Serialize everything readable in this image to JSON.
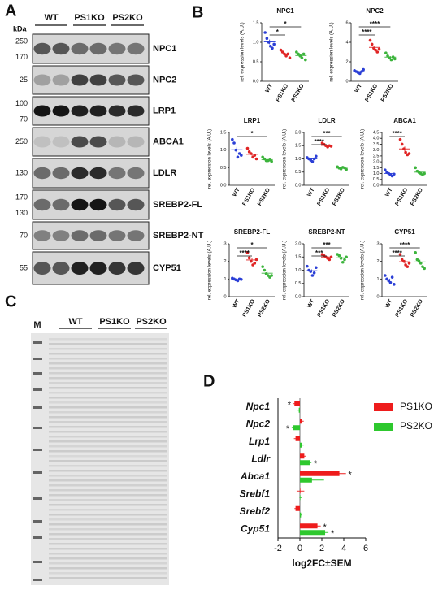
{
  "panel_a": {
    "label": "A",
    "unit": "kDa",
    "groups": [
      "WT",
      "PS1KO",
      "PS2KO"
    ],
    "blots": [
      {
        "name": "NPC1",
        "markers": [
          250,
          170
        ]
      },
      {
        "name": "NPC2",
        "markers": [
          25
        ]
      },
      {
        "name": "LRP1",
        "markers": [
          100,
          70
        ]
      },
      {
        "name": "ABCA1",
        "markers": [
          250
        ]
      },
      {
        "name": "LDLR",
        "markers": [
          130
        ]
      },
      {
        "name": "SREBP2-FL",
        "markers": [
          170,
          130
        ]
      },
      {
        "name": "SREBP2-NT",
        "markers": [
          70
        ]
      },
      {
        "name": "CYP51",
        "markers": [
          55
        ]
      }
    ]
  },
  "panel_b": {
    "label": "B"
  },
  "panel_c": {
    "label": "C",
    "marker_lane": "M",
    "groups": [
      "WT",
      "PS1KO",
      "PS2KO"
    ]
  },
  "panel_d": {
    "label": "D"
  },
  "chart_data": [
    {
      "type": "scatter",
      "title": "NPC1",
      "y_label": "rel. expression levels (A.U.)",
      "categories": [
        "WT",
        "PS1KO",
        "PS2KO"
      ],
      "series": [
        {
          "color": "#2b3fd6",
          "values": [
            1.25,
            1.1,
            1.0,
            0.9,
            0.85,
            0.95
          ],
          "mean": 1.01,
          "sem": 0.06
        },
        {
          "color": "#e02424",
          "values": [
            0.8,
            0.75,
            0.7,
            0.65,
            0.7,
            0.6
          ],
          "mean": 0.7,
          "sem": 0.03
        },
        {
          "color": "#3cb43c",
          "values": [
            0.75,
            0.7,
            0.65,
            0.6,
            0.7,
            0.55
          ],
          "mean": 0.66,
          "sem": 0.03
        }
      ],
      "ylim": [
        0,
        1.5
      ],
      "yticks": [
        {
          "value": 0,
          "label": "0.0"
        },
        0.5,
        {
          "value": 1,
          "label": "1.0"
        },
        1.5
      ],
      "significance": [
        {
          "groups": [
            "WT",
            "PS1KO"
          ],
          "label": "*"
        },
        {
          "groups": [
            "WT",
            "PS2KO"
          ],
          "label": "*"
        }
      ]
    },
    {
      "type": "scatter",
      "title": "NPC2",
      "y_label": "rel. expression levels (A.U.)",
      "categories": [
        "WT",
        "PS1KO",
        "PS2KO"
      ],
      "series": [
        {
          "color": "#2b3fd6",
          "values": [
            1.1,
            1.0,
            0.9,
            0.8,
            1.0,
            1.2
          ],
          "mean": 1.0,
          "sem": 0.06
        },
        {
          "color": "#e02424",
          "values": [
            4.2,
            3.8,
            3.4,
            3.2,
            3.0,
            3.3
          ],
          "mean": 3.48,
          "sem": 0.18
        },
        {
          "color": "#3cb43c",
          "values": [
            2.9,
            2.6,
            2.4,
            2.2,
            2.5,
            2.3
          ],
          "mean": 2.48,
          "sem": 0.1
        }
      ],
      "ylim": [
        0,
        6
      ],
      "yticks": [
        0,
        2,
        4,
        6
      ],
      "significance": [
        {
          "groups": [
            "WT",
            "PS1KO"
          ],
          "label": "****"
        },
        {
          "groups": [
            "WT",
            "PS2KO"
          ],
          "label": "****"
        }
      ]
    },
    {
      "type": "scatter",
      "title": "LRP1",
      "y_label": "rel. expression levels (A.U.)",
      "categories": [
        "WT",
        "PS1KO",
        "PS2KO"
      ],
      "series": [
        {
          "color": "#2b3fd6",
          "values": [
            1.3,
            1.2,
            1.0,
            0.8,
            0.9,
            0.85
          ],
          "mean": 1.01,
          "sem": 0.08
        },
        {
          "color": "#e02424",
          "values": [
            1.05,
            0.95,
            0.9,
            0.8,
            0.85,
            0.75
          ],
          "mean": 0.88,
          "sem": 0.04
        },
        {
          "color": "#3cb43c",
          "values": [
            0.8,
            0.75,
            0.7,
            0.7,
            0.72,
            0.68
          ],
          "mean": 0.73,
          "sem": 0.02
        }
      ],
      "ylim": [
        0,
        1.5
      ],
      "yticks": [
        {
          "value": 0,
          "label": "0.0"
        },
        0.5,
        {
          "value": 1,
          "label": "1.0"
        },
        1.5
      ],
      "significance": [
        {
          "groups": [
            "WT",
            "PS2KO"
          ],
          "label": "*"
        }
      ]
    },
    {
      "type": "scatter",
      "title": "LDLR",
      "y_label": "rel. expression levels (A.U.)",
      "categories": [
        "WT",
        "PS1KO",
        "PS2KO"
      ],
      "series": [
        {
          "color": "#2b3fd6",
          "values": [
            1.05,
            1.0,
            0.95,
            0.9,
            1.0,
            1.1
          ],
          "mean": 1.0,
          "sem": 0.03
        },
        {
          "color": "#e02424",
          "values": [
            1.6,
            1.55,
            1.5,
            1.45,
            1.5,
            1.48
          ],
          "mean": 1.51,
          "sem": 0.02
        },
        {
          "color": "#3cb43c",
          "values": [
            0.7,
            0.65,
            0.62,
            0.68,
            0.66,
            0.6
          ],
          "mean": 0.65,
          "sem": 0.02
        }
      ],
      "ylim": [
        0,
        2
      ],
      "yticks": [
        {
          "value": 0,
          "label": "0.0"
        },
        0.5,
        {
          "value": 1,
          "label": "1.0"
        },
        1.5,
        {
          "value": 2,
          "label": "2.0"
        }
      ],
      "significance": [
        {
          "groups": [
            "WT",
            "PS1KO"
          ],
          "label": "****"
        },
        {
          "groups": [
            "WT",
            "PS2KO"
          ],
          "label": "***"
        }
      ]
    },
    {
      "type": "scatter",
      "title": "ABCA1",
      "y_label": "rel. expression levels (A.U.)",
      "categories": [
        "WT",
        "PS1KO",
        "PS2KO"
      ],
      "series": [
        {
          "color": "#2b3fd6",
          "values": [
            1.3,
            1.1,
            1.0,
            0.9,
            0.8,
            0.95
          ],
          "mean": 1.01,
          "sem": 0.07
        },
        {
          "color": "#e02424",
          "values": [
            3.9,
            3.5,
            3.1,
            2.8,
            2.6,
            2.7
          ],
          "mean": 3.1,
          "sem": 0.2
        },
        {
          "color": "#3cb43c",
          "values": [
            1.5,
            1.2,
            1.1,
            1.0,
            0.9,
            1.0
          ],
          "mean": 1.12,
          "sem": 0.09
        }
      ],
      "ylim": [
        0,
        4.5
      ],
      "yticks": [
        {
          "value": 0,
          "label": "0.0"
        },
        0.5,
        {
          "value": 1,
          "label": "1.0"
        },
        1.5,
        {
          "value": 2,
          "label": "2.0"
        },
        2.5,
        {
          "value": 3,
          "label": "3.0"
        },
        3.5,
        {
          "value": 4,
          "label": "4.0"
        },
        4.5
      ],
      "significance": [
        {
          "groups": [
            "WT",
            "PS1KO"
          ],
          "label": "****"
        }
      ]
    },
    {
      "type": "scatter",
      "title": "SREBP2-FL",
      "y_label": "rel. expression levels (A.U.)",
      "categories": [
        "WT",
        "PS1KO",
        "PS2KO"
      ],
      "series": [
        {
          "color": "#2b3fd6",
          "values": [
            1.05,
            1.0,
            0.95,
            0.9,
            1.0,
            0.98
          ],
          "mean": 0.98,
          "sem": 0.02
        },
        {
          "color": "#e02424",
          "values": [
            2.5,
            2.2,
            2.0,
            1.8,
            1.9,
            2.1
          ],
          "mean": 2.08,
          "sem": 0.1
        },
        {
          "color": "#3cb43c",
          "values": [
            1.7,
            1.5,
            1.3,
            1.2,
            1.1,
            1.2
          ],
          "mean": 1.33,
          "sem": 0.09
        }
      ],
      "ylim": [
        0,
        3
      ],
      "yticks": [
        0,
        1,
        2,
        3
      ],
      "significance": [
        {
          "groups": [
            "WT",
            "PS1KO"
          ],
          "label": "****"
        },
        {
          "groups": [
            "WT",
            "PS2KO"
          ],
          "label": "*"
        }
      ]
    },
    {
      "type": "scatter",
      "title": "SREBP2-NT",
      "y_label": "rel. expression levels (A.U.)",
      "categories": [
        "WT",
        "PS1KO",
        "PS2KO"
      ],
      "series": [
        {
          "color": "#2b3fd6",
          "values": [
            1.15,
            1.0,
            0.95,
            0.8,
            0.9,
            1.1
          ],
          "mean": 0.98,
          "sem": 0.05
        },
        {
          "color": "#e02424",
          "values": [
            1.6,
            1.55,
            1.5,
            1.45,
            1.4,
            1.5
          ],
          "mean": 1.5,
          "sem": 0.03
        },
        {
          "color": "#3cb43c",
          "values": [
            1.6,
            1.55,
            1.45,
            1.3,
            1.4,
            1.5
          ],
          "mean": 1.47,
          "sem": 0.04
        }
      ],
      "ylim": [
        0,
        2
      ],
      "yticks": [
        {
          "value": 0,
          "label": "0.0"
        },
        0.5,
        {
          "value": 1,
          "label": "1.0"
        },
        1.5,
        {
          "value": 2,
          "label": "2.0"
        }
      ],
      "significance": [
        {
          "groups": [
            "WT",
            "PS1KO"
          ],
          "label": "***"
        },
        {
          "groups": [
            "WT",
            "PS2KO"
          ],
          "label": "***"
        }
      ]
    },
    {
      "type": "scatter",
      "title": "CYP51",
      "y_label": "rel. expression levels (A.U.)",
      "categories": [
        "WT",
        "PS1KO",
        "PS2KO"
      ],
      "series": [
        {
          "color": "#2b3fd6",
          "values": [
            1.2,
            1.0,
            0.9,
            0.8,
            1.1,
            0.7
          ],
          "mean": 0.95,
          "sem": 0.07
        },
        {
          "color": "#e02424",
          "values": [
            2.4,
            2.1,
            2.0,
            1.8,
            1.7,
            1.9
          ],
          "mean": 1.98,
          "sem": 0.1
        },
        {
          "color": "#3cb43c",
          "values": [
            2.5,
            2.1,
            2.0,
            1.9,
            1.7,
            1.6
          ],
          "mean": 1.97,
          "sem": 0.13
        }
      ],
      "ylim": [
        0,
        3
      ],
      "yticks": [
        0,
        1,
        2,
        3
      ],
      "significance": [
        {
          "groups": [
            "WT",
            "PS1KO"
          ],
          "label": "****"
        },
        {
          "groups": [
            "WT",
            "PS2KO"
          ],
          "label": "****"
        }
      ]
    },
    {
      "type": "hbar",
      "x_label": "log2FC±SEM",
      "categories": [
        "Npc1",
        "Npc2",
        "Lrp1",
        "Ldlr",
        "Abca1",
        "Srebf1",
        "Srebf2",
        "Cyp51"
      ],
      "series": [
        {
          "name": "PS1KO",
          "color": "#ee1c1c",
          "values": [
            -0.5,
            0.2,
            -0.4,
            0.4,
            3.6,
            0.05,
            -0.4,
            1.6
          ],
          "errors": [
            0.1,
            0.15,
            0.15,
            0.15,
            0.6,
            0.35,
            0.1,
            0.3
          ]
        },
        {
          "name": "PS2KO",
          "color": "#2ec82e",
          "values": [
            -0.1,
            -0.6,
            0.2,
            0.9,
            1.1,
            0.05,
            0.1,
            2.3
          ],
          "errors": [
            0.1,
            0.15,
            0.15,
            0.15,
            1.1,
            0.1,
            0.1,
            0.3
          ]
        }
      ],
      "stars": [
        {
          "category": "Npc1",
          "series": "PS1KO",
          "label": "*"
        },
        {
          "category": "Npc2",
          "series": "PS2KO",
          "label": "*"
        },
        {
          "category": "Ldlr",
          "series": "PS2KO",
          "label": "*"
        },
        {
          "category": "Abca1",
          "series": "PS1KO",
          "label": "*"
        },
        {
          "category": "Cyp51",
          "series": "PS1KO",
          "label": "*"
        },
        {
          "category": "Cyp51",
          "series": "PS2KO",
          "label": "*"
        }
      ],
      "xlim": [
        -2,
        6
      ],
      "xticks": [
        -2,
        0,
        2,
        4,
        6
      ],
      "legend": "upper right"
    }
  ]
}
